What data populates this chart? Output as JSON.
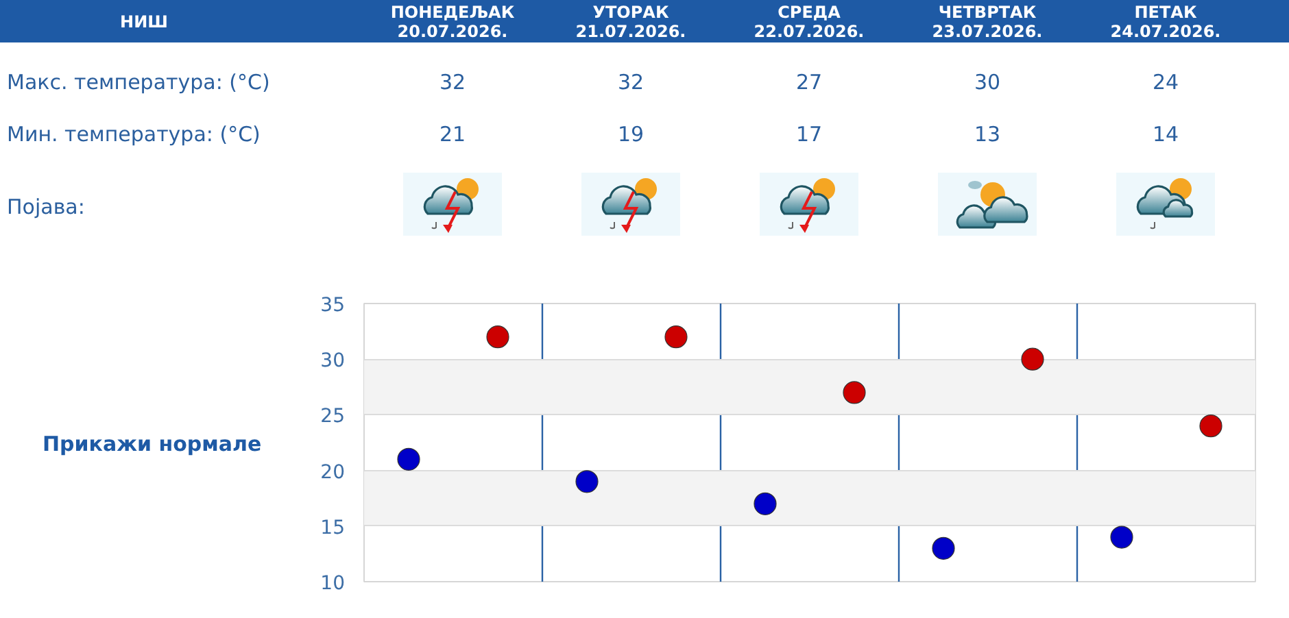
{
  "chart_data": {
    "type": "scatter",
    "title": "НИШ",
    "categories": [
      null,
      null,
      null,
      null,
      null
    ],
    "series": [
      {
        "color": "#cc0000",
        "values": [
          32,
          32,
          27,
          30,
          24
        ]
      },
      {
        "color": "#0000c8",
        "values": [
          21,
          19,
          17,
          13,
          14
        ]
      }
    ],
    "ylim": [
      10,
      35
    ],
    "yticks": [
      10,
      15,
      20,
      25,
      30,
      35
    ],
    "grid": true,
    "marker": "circle",
    "data_labels": true,
    "annotations": [
      "ПОНЕДЕЉАК\n20.07.2026.",
      "УТОРАК\n21.07.2026.",
      "СРЕДА\n22.07.2026.",
      "ЧЕТВРТАК\n23.07.2026.",
      "ПЕТАК\n24.07.2026.",
      "Макс. температура: (°C)",
      "Мин. температура: (°C)",
      "Појава:",
      "Прикажи нормале"
    ]
  }
}
